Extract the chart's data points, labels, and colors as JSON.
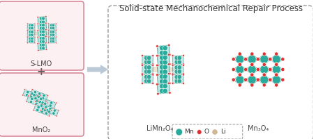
{
  "title": "Solid-state Mechanochemical Repair Process",
  "title_fontsize": 8.5,
  "bg_color": "#ffffff",
  "teal_dark": "#1a8a7a",
  "teal_mid": "#2aaa9a",
  "teal_light": "#85cece",
  "teal_face": "#a8dede",
  "red_color": "#e03030",
  "beige_color": "#d4b896",
  "beige_face": "#e8d5b5",
  "pink_edge": "#d48090",
  "pink_face": "#fdf0f2",
  "dashed_c": "#999999",
  "arrow_color": "#aabbcc",
  "label_slmo": "S-LMO",
  "label_mno2": "MnO₂",
  "label_limno": "LiMn₂O₄",
  "label_mn3o4": "Mn₃O₄",
  "legend_mn": "Mn",
  "legend_o": "O",
  "legend_li": "Li",
  "font_label": 7.0,
  "font_legend": 6.5
}
